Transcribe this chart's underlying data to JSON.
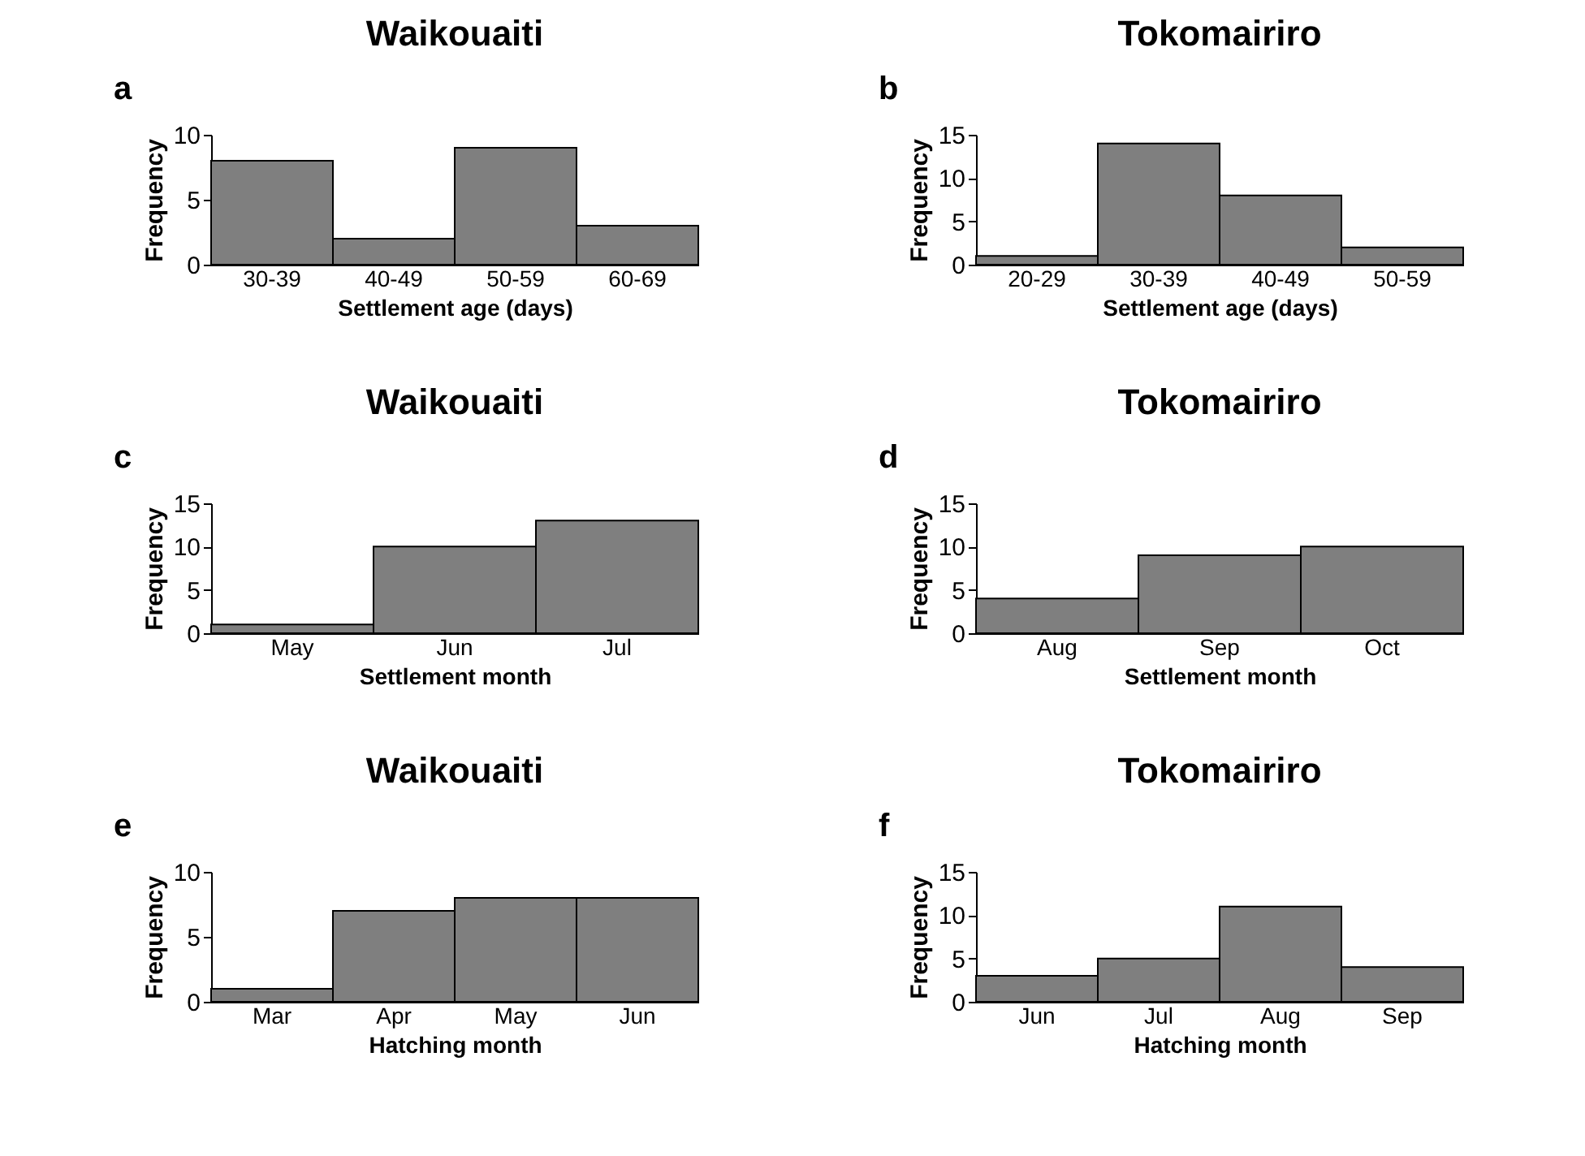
{
  "chart_data": [
    {
      "type": "bar",
      "title": "Waikouaiti",
      "annotations": [
        "a"
      ],
      "xlabel": "Settlement age (days)",
      "ylabel": "Frequency",
      "categories": [
        "30-39",
        "40-49",
        "50-59",
        "60-69"
      ],
      "values": [
        8,
        2,
        9,
        3
      ],
      "color": "#7f7f7f",
      "ylim": [
        0,
        10
      ],
      "yticks": [
        0,
        5,
        10
      ],
      "grid": false
    },
    {
      "type": "bar",
      "title": "Tokomairiro",
      "annotations": [
        "b"
      ],
      "xlabel": "Settlement age (days)",
      "ylabel": "Frequency",
      "categories": [
        "20-29",
        "30-39",
        "40-49",
        "50-59"
      ],
      "values": [
        1,
        14,
        8,
        2
      ],
      "color": "#7f7f7f",
      "ylim": [
        0,
        15
      ],
      "yticks": [
        0,
        5,
        10,
        15
      ],
      "grid": false
    },
    {
      "type": "bar",
      "title": "Waikouaiti",
      "annotations": [
        "c"
      ],
      "xlabel": "Settlement month",
      "ylabel": "Frequency",
      "categories": [
        "May",
        "Jun",
        "Jul"
      ],
      "values": [
        1,
        10,
        13
      ],
      "color": "#7f7f7f",
      "ylim": [
        0,
        15
      ],
      "yticks": [
        0,
        5,
        10,
        15
      ],
      "grid": false
    },
    {
      "type": "bar",
      "title": "Tokomairiro",
      "annotations": [
        "d"
      ],
      "xlabel": "Settlement month",
      "ylabel": "Frequency",
      "categories": [
        "Aug",
        "Sep",
        "Oct"
      ],
      "values": [
        4,
        9,
        10
      ],
      "color": "#7f7f7f",
      "ylim": [
        0,
        15
      ],
      "yticks": [
        0,
        5,
        10,
        15
      ],
      "grid": false
    },
    {
      "type": "bar",
      "title": "Waikouaiti",
      "annotations": [
        "e"
      ],
      "xlabel": "Hatching month",
      "ylabel": "Frequency",
      "categories": [
        "Mar",
        "Apr",
        "May",
        "Jun"
      ],
      "values": [
        1,
        7,
        8,
        8
      ],
      "color": "#7f7f7f",
      "ylim": [
        0,
        10
      ],
      "yticks": [
        0,
        5,
        10
      ],
      "grid": false
    },
    {
      "type": "bar",
      "title": "Tokomairiro",
      "annotations": [
        "f"
      ],
      "xlabel": "Hatching month",
      "ylabel": "Frequency",
      "categories": [
        "Jun",
        "Jul",
        "Aug",
        "Sep"
      ],
      "values": [
        3,
        5,
        11,
        4
      ],
      "color": "#7f7f7f",
      "ylim": [
        0,
        15
      ],
      "yticks": [
        0,
        5,
        10,
        15
      ],
      "grid": false
    }
  ]
}
